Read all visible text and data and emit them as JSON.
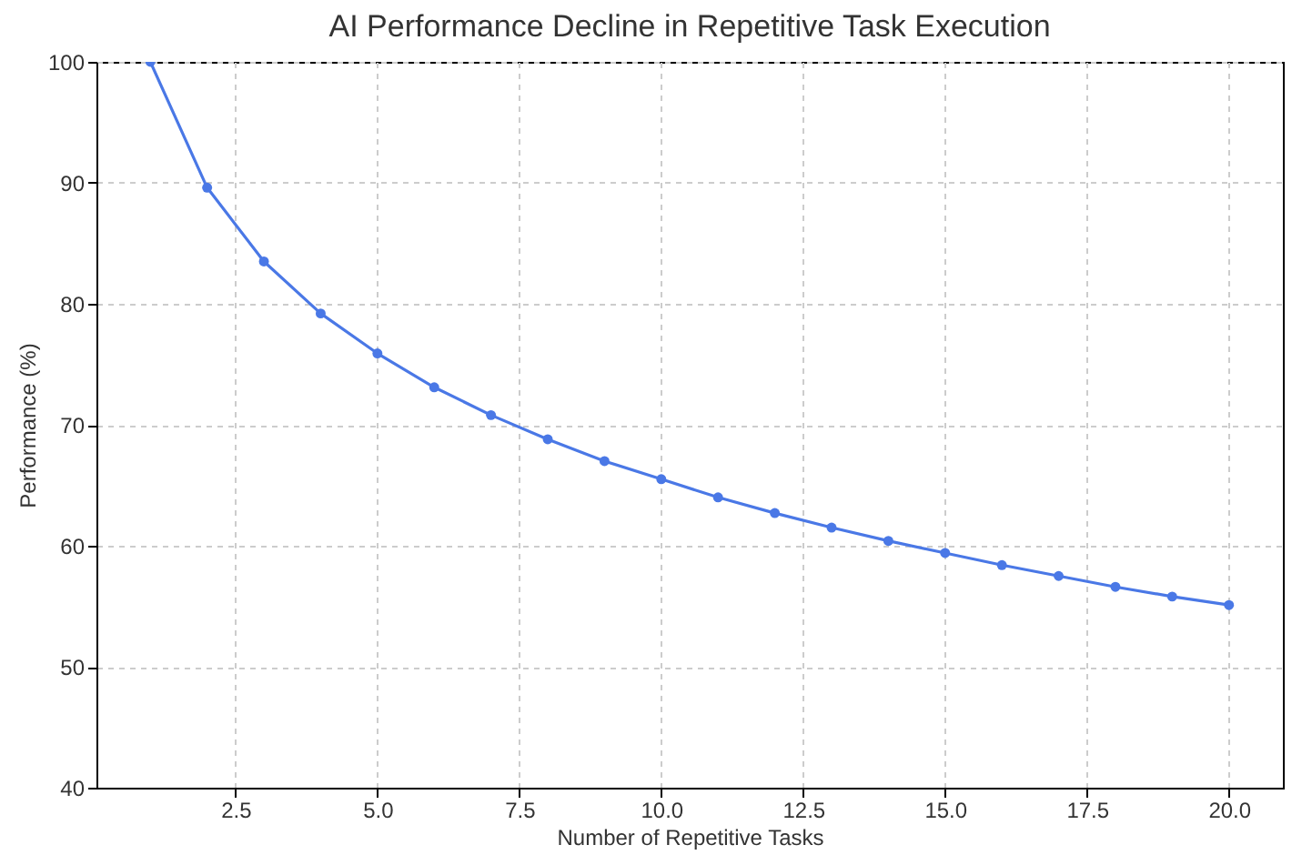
{
  "chart_data": {
    "type": "line",
    "title": "AI Performance Decline in Repetitive Task Execution",
    "xlabel": "Number of Repetitive Tasks",
    "ylabel": "Performance (%)",
    "x": [
      1,
      2,
      3,
      4,
      5,
      6,
      7,
      8,
      9,
      10,
      11,
      12,
      13,
      14,
      15,
      16,
      17,
      18,
      19,
      20
    ],
    "series": [
      {
        "color": "#4a78e6",
        "values": [
          100,
          89.6,
          83.5,
          79.2,
          75.9,
          73.1,
          70.8,
          68.8,
          67.0,
          65.5,
          64.0,
          62.7,
          61.5,
          60.4,
          59.4,
          58.4,
          57.5,
          56.6,
          55.8,
          55.1
        ]
      }
    ],
    "xlim": [
      0.05,
      20.95
    ],
    "xticks": [
      {
        "value": 2.5,
        "label": "2.5"
      },
      {
        "value": 5,
        "label": "5.0"
      },
      {
        "value": 7.5,
        "label": "7.5"
      },
      {
        "value": 10,
        "label": "10.0"
      },
      {
        "value": 12.5,
        "label": "12.5"
      },
      {
        "value": 15,
        "label": "15.0"
      },
      {
        "value": 17.5,
        "label": "17.5"
      },
      {
        "value": 20,
        "label": "20.0"
      }
    ],
    "ylim": [
      40,
      100
    ],
    "yticks": [
      40,
      50,
      60,
      70,
      80,
      90,
      100
    ],
    "grid": true,
    "marker": "circle",
    "line_style": "solid"
  }
}
